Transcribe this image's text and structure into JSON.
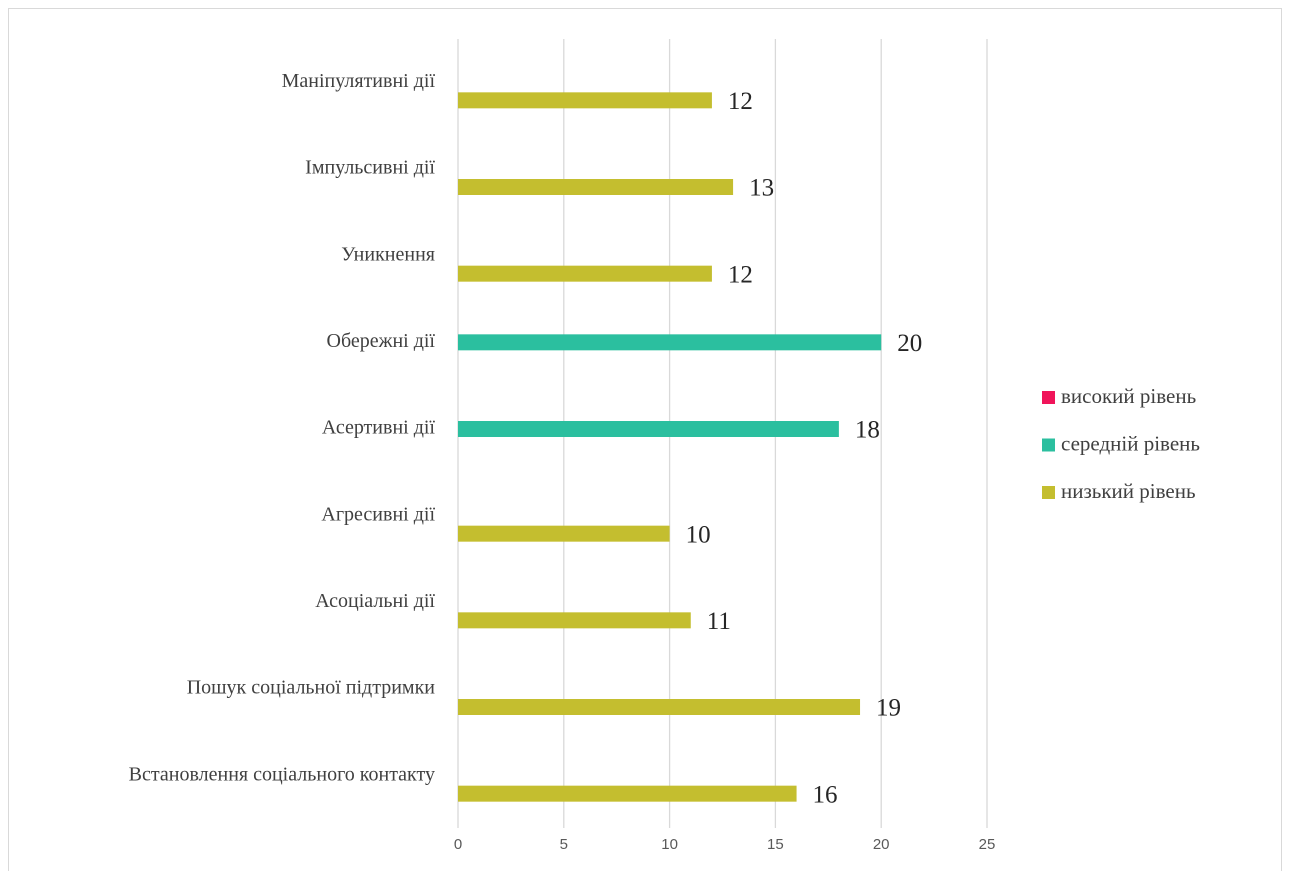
{
  "chart_data": {
    "type": "bar",
    "orientation": "horizontal",
    "categories": [
      "Маніпулятивні дії",
      "Імпульсивні дії",
      "Уникнення",
      "Обережні дії",
      "Асертивні дії",
      "Агресивні дії",
      "Асоціальні дії",
      "Пошук соціальної підтримки",
      "Встановлення соціального контакту"
    ],
    "series": [
      {
        "name": "високий рівень",
        "color": "#f0145a",
        "values": [
          null,
          null,
          null,
          null,
          null,
          null,
          null,
          null,
          null
        ]
      },
      {
        "name": "середній рівень",
        "color": "#2bbf9f",
        "values": [
          null,
          null,
          null,
          20,
          18,
          null,
          null,
          null,
          null
        ]
      },
      {
        "name": "низький рівень",
        "color": "#c4be2f",
        "values": [
          12,
          13,
          12,
          null,
          null,
          10,
          11,
          19,
          16
        ]
      }
    ],
    "xlim": [
      0,
      25
    ],
    "xticks": [
      0,
      5,
      10,
      15,
      20,
      25
    ],
    "grid": true,
    "legend": "right"
  }
}
